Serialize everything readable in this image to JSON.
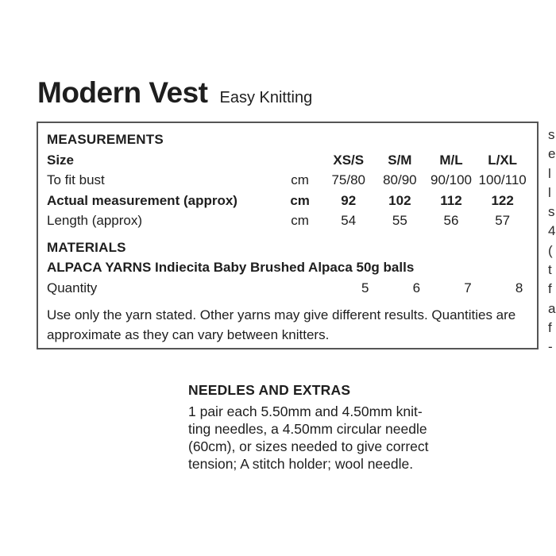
{
  "title": {
    "main": "Modern Vest",
    "subtitle": "Easy Knitting"
  },
  "colors": {
    "text": "#1e1e1e",
    "box_border": "#555555",
    "background": "#ffffff"
  },
  "measurements": {
    "heading": "MEASUREMENTS",
    "size_label": "Size",
    "size_columns": [
      "XS/S",
      "S/M",
      "M/L",
      "L/XL"
    ],
    "rows": [
      {
        "label": "To fit bust",
        "unit": "cm",
        "values": [
          "75/80",
          "80/90",
          "90/100",
          "100/110"
        ]
      },
      {
        "label": "Actual measurement (approx)",
        "unit": "cm",
        "values": [
          "92",
          "102",
          "112",
          "122"
        ]
      },
      {
        "label": "Length (approx)",
        "unit": "cm",
        "values": [
          "54",
          "55",
          "56",
          "57"
        ]
      }
    ]
  },
  "materials": {
    "heading": "MATERIALS",
    "yarn": "ALPACA YARNS Indiecita Baby Brushed Alpaca 50g balls",
    "quantity_label": "Quantity",
    "quantities": [
      "5",
      "6",
      "7",
      "8"
    ],
    "note": "Use only the yarn stated. Other yarns may give different results. Quantities are approximate as they can vary between knitters."
  },
  "needles": {
    "heading": "NEEDLES AND EXTRAS",
    "lines": [
      "1 pair each 5.50mm and 4.50mm knit-",
      "ting needles, a 4.50mm circular needle",
      "(60cm), or sizes needed to give correct",
      "tension; A stitch holder; wool needle."
    ]
  },
  "cropped_column_fragments": [
    "s",
    "e",
    "l",
    "l",
    "s",
    "4",
    "(",
    "t",
    "f",
    "a",
    "f",
    "-"
  ]
}
